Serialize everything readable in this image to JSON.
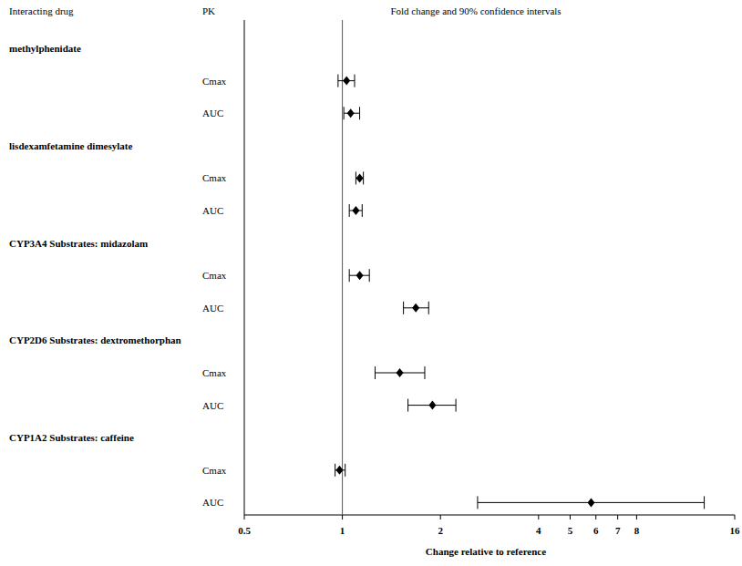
{
  "chart_data": {
    "type": "forest",
    "title": "Fold change and 90% confidence intervals",
    "row_header": "Interacting drug",
    "label_header": "PK",
    "x_label": "Change relative to reference",
    "log": "x",
    "xlim": [
      0.5,
      16
    ],
    "xticks": [
      0.5,
      1,
      2,
      4,
      5,
      6,
      7,
      8,
      16
    ],
    "reference": 1,
    "marker": "diamond",
    "color": "#000000",
    "groups": [
      {
        "name": "methylphenidate",
        "rows": [
          {
            "label": "Cmax",
            "value": 1.03,
            "ci_lower": 0.97,
            "ci_upper": 1.09
          },
          {
            "label": "AUC",
            "value": 1.06,
            "ci_lower": 1.01,
            "ci_upper": 1.13
          }
        ]
      },
      {
        "name": "lisdexamfetamine dimesylate",
        "rows": [
          {
            "label": "Cmax",
            "value": 1.13,
            "ci_lower": 1.1,
            "ci_upper": 1.16
          },
          {
            "label": "AUC",
            "value": 1.1,
            "ci_lower": 1.05,
            "ci_upper": 1.15
          }
        ]
      },
      {
        "name": "CYP3A4 Substrates: midazolam",
        "rows": [
          {
            "label": "Cmax",
            "value": 1.13,
            "ci_lower": 1.05,
            "ci_upper": 1.21
          },
          {
            "label": "AUC",
            "value": 1.68,
            "ci_lower": 1.54,
            "ci_upper": 1.84
          }
        ]
      },
      {
        "name": "CYP2D6 Substrates: dextromethorphan",
        "rows": [
          {
            "label": "Cmax",
            "value": 1.5,
            "ci_lower": 1.26,
            "ci_upper": 1.79
          },
          {
            "label": "AUC",
            "value": 1.89,
            "ci_lower": 1.59,
            "ci_upper": 2.23
          }
        ]
      },
      {
        "name": "CYP1A2 Substrates: caffeine",
        "rows": [
          {
            "label": "Cmax",
            "value": 0.98,
            "ci_lower": 0.95,
            "ci_upper": 1.02
          },
          {
            "label": "AUC",
            "value": 5.8,
            "ci_lower": 2.6,
            "ci_upper": 12.9
          }
        ]
      }
    ]
  }
}
